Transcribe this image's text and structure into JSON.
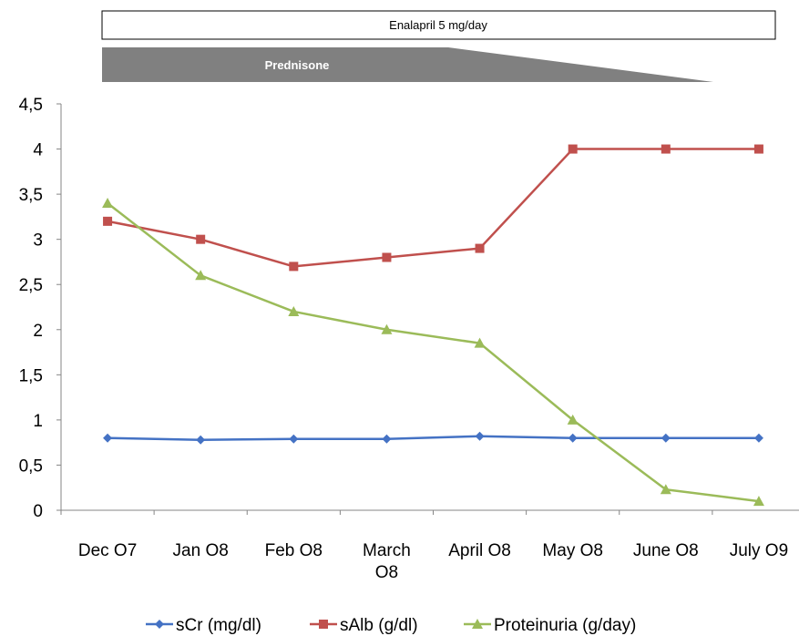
{
  "enalapril_label": "Enalapril 5 mg/day",
  "prednisone_label": "Prednisone",
  "chart_data": {
    "type": "line",
    "title": "",
    "xlabel": "",
    "ylabel": "",
    "ylim": [
      0,
      4.5
    ],
    "yticks": [
      0,
      0.5,
      1,
      1.5,
      2,
      2.5,
      3,
      3.5,
      4,
      4.5
    ],
    "ytick_labels": [
      "0",
      "0,5",
      "1",
      "1,5",
      "2",
      "2,5",
      "3",
      "3,5",
      "4",
      "4,5"
    ],
    "categories": [
      "Dec O7",
      "Jan O8",
      "Feb O8",
      "March O8",
      "April O8",
      "May O8",
      "June O8",
      "July O9"
    ],
    "category_lines": [
      [
        "Dec O7"
      ],
      [
        "Jan O8"
      ],
      [
        "Feb O8"
      ],
      [
        "March",
        "O8"
      ],
      [
        "April O8"
      ],
      [
        "May O8"
      ],
      [
        "June O8"
      ],
      [
        "July O9"
      ]
    ],
    "grid": false,
    "legend_position": "bottom",
    "series": [
      {
        "name": "sCr (mg/dl)",
        "marker": "diamond",
        "color": "#4472c4",
        "values": [
          0.8,
          0.78,
          0.79,
          0.79,
          0.82,
          0.8,
          0.8,
          0.8
        ]
      },
      {
        "name": "sAlb (g/dl)",
        "marker": "square",
        "color": "#c0504d",
        "values": [
          3.2,
          3.0,
          2.7,
          2.8,
          2.9,
          4.0,
          4.0,
          4.0
        ]
      },
      {
        "name": "Proteinuria (g/day)",
        "marker": "triangle",
        "color": "#9bbb59",
        "values": [
          3.4,
          2.6,
          2.2,
          2.0,
          1.85,
          1.0,
          0.23,
          0.1
        ]
      }
    ]
  }
}
